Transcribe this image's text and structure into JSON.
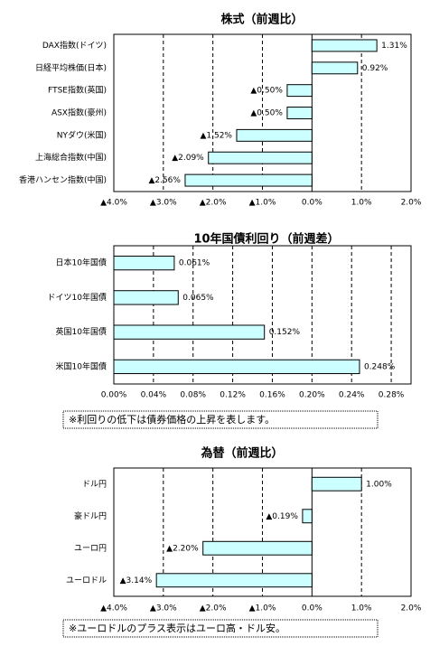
{
  "chart_data": [
    {
      "type": "bar",
      "orientation": "horizontal",
      "title": "株式（前週比）",
      "categories": [
        "DAX指数(ドイツ)",
        "日経平均株価(日本)",
        "FTSE指数(英国)",
        "ASX指数(豪州)",
        "NYダウ(米国)",
        "上海総合指数(中国)",
        "香港ハンセン指数(中国)"
      ],
      "values": [
        1.31,
        0.92,
        -0.5,
        -0.5,
        -1.52,
        -2.09,
        -2.56
      ],
      "value_labels": [
        "1.31%",
        "0.92%",
        "▲0.50%",
        "▲0.50%",
        "▲1.52%",
        "▲2.09%",
        "▲2.56%"
      ],
      "xlim": [
        -4,
        2
      ],
      "xticks": [
        {
          "value": -4,
          "label": "▲4.0%"
        },
        {
          "value": -3,
          "label": "▲3.0%"
        },
        {
          "value": -2,
          "label": "▲2.0%"
        },
        {
          "value": -1,
          "label": "▲1.0%"
        },
        {
          "value": 0,
          "label": "0.0%"
        },
        {
          "value": 1,
          "label": "1.0%"
        },
        {
          "value": 2,
          "label": "2.0%"
        }
      ],
      "grid": true,
      "color": "#ccffff",
      "negative_color": "#ff0000"
    },
    {
      "type": "bar",
      "orientation": "horizontal",
      "title": "10年国債利回り（前週差）",
      "categories": [
        "日本10年国債",
        "ドイツ10年国債",
        "英国10年国債",
        "米国10年国債"
      ],
      "values": [
        0.061,
        0.065,
        0.152,
        0.248
      ],
      "value_labels": [
        "0.061%",
        "0.065%",
        "0.152%",
        "0.248%"
      ],
      "xlim": [
        0,
        0.3
      ],
      "xticks": [
        {
          "value": 0,
          "label": "0.00%"
        },
        {
          "value": 0.04,
          "label": "0.04%"
        },
        {
          "value": 0.08,
          "label": "0.08%"
        },
        {
          "value": 0.12,
          "label": "0.12%"
        },
        {
          "value": 0.16,
          "label": "0.16%"
        },
        {
          "value": 0.2,
          "label": "0.20%"
        },
        {
          "value": 0.24,
          "label": "0.24%"
        },
        {
          "value": 0.28,
          "label": "0.28%"
        }
      ],
      "grid": true,
      "color": "#ccffff",
      "negative_color": "#ff0000",
      "note": "※利回りの低下は債券価格の上昇を表します。"
    },
    {
      "type": "bar",
      "orientation": "horizontal",
      "title": "為替（前週比）",
      "categories": [
        "ドル円",
        "豪ドル円",
        "ユーロ円",
        "ユーロドル"
      ],
      "values": [
        1.0,
        -0.19,
        -2.2,
        -3.14
      ],
      "value_labels": [
        "1.00%",
        "▲0.19%",
        "▲2.20%",
        "▲3.14%"
      ],
      "xlim": [
        -4,
        2
      ],
      "xticks": [
        {
          "value": -4,
          "label": "▲4.0%"
        },
        {
          "value": -3,
          "label": "▲3.0%"
        },
        {
          "value": -2,
          "label": "▲2.0%"
        },
        {
          "value": -1,
          "label": "▲1.0%"
        },
        {
          "value": 0,
          "label": "0.0%"
        },
        {
          "value": 1,
          "label": "1.0%"
        },
        {
          "value": 2,
          "label": "2.0%"
        }
      ],
      "grid": true,
      "color": "#ccffff",
      "negative_color": "#ff0000",
      "note": "※ユーロドルのプラス表示はユーロ高・ドル安。"
    }
  ]
}
